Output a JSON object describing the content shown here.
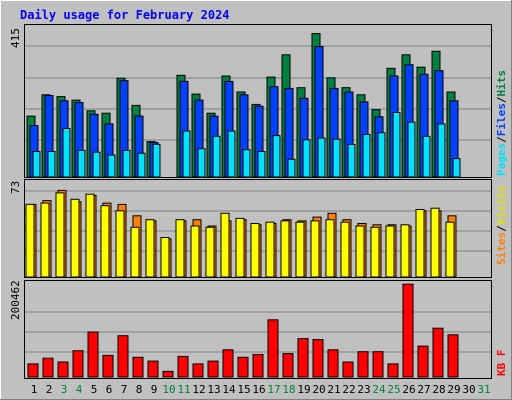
{
  "title": "Daily usage for February 2024",
  "colors": {
    "background": "#c0c0c0",
    "plot_bg": "#c0c0c0",
    "title": "#0000ff",
    "hits": "#008040",
    "files": "#0040ff",
    "pages": "#00e0ff",
    "visits": "#ffff00",
    "sites": "#ff8000",
    "kbytes": "#ff0000",
    "weekend_label": "#008040",
    "weekday_label": "#000000"
  },
  "labels": {
    "pages": "Pages",
    "files": "Files",
    "hits": "Hits",
    "sites": "Sites",
    "visits": "Visits",
    "kbytes": "KB F",
    "sep": "/"
  },
  "chart_data": [
    {
      "type": "bar",
      "panel": "hits-files-pages",
      "ymax_label": "415",
      "ymax": 415,
      "categories": [
        "1",
        "2",
        "3",
        "4",
        "5",
        "6",
        "7",
        "8",
        "9",
        "10",
        "11",
        "12",
        "13",
        "14",
        "15",
        "16",
        "17",
        "18",
        "19",
        "20",
        "21",
        "22",
        "23",
        "24",
        "25",
        "26",
        "27",
        "28",
        "29",
        "30",
        "31"
      ],
      "series": [
        {
          "name": "Hits",
          "values": [
            172,
            232,
            227,
            217,
            187,
            180,
            279,
            202,
            100,
            0,
            287,
            234,
            180,
            285,
            240,
            205,
            282,
            345,
            252,
            405,
            280,
            252,
            232,
            190,
            307,
            345,
            310,
            355,
            240,
            0,
            0
          ]
        },
        {
          "name": "Files",
          "values": [
            145,
            230,
            215,
            210,
            177,
            150,
            272,
            172,
            97,
            0,
            270,
            217,
            172,
            270,
            232,
            200,
            255,
            250,
            222,
            368,
            250,
            240,
            212,
            170,
            285,
            317,
            290,
            300,
            215,
            0,
            0
          ]
        },
        {
          "name": "Pages",
          "values": [
            72,
            72,
            137,
            75,
            70,
            62,
            75,
            67,
            92,
            0,
            130,
            80,
            115,
            130,
            77,
            72,
            117,
            50,
            105,
            110,
            107,
            92,
            120,
            125,
            182,
            155,
            115,
            150,
            52,
            0,
            0
          ]
        }
      ]
    },
    {
      "type": "bar",
      "panel": "visits-sites",
      "ymax_label": "73",
      "ymax": 73,
      "categories": [
        "1",
        "2",
        "3",
        "4",
        "5",
        "6",
        "7",
        "8",
        "9",
        "10",
        "11",
        "12",
        "13",
        "14",
        "15",
        "16",
        "17",
        "18",
        "19",
        "20",
        "21",
        "22",
        "23",
        "24",
        "25",
        "26",
        "27",
        "28",
        "29",
        "30",
        "31"
      ],
      "series": [
        {
          "name": "Visits",
          "values": [
            57,
            58,
            66,
            61,
            65,
            56,
            52,
            39,
            45,
            31,
            45,
            40,
            39,
            50,
            46,
            42,
            43,
            44,
            43,
            44,
            45,
            43,
            40,
            39,
            40,
            41,
            53,
            54,
            43,
            0,
            0
          ]
        },
        {
          "name": "Sites",
          "values": [
            57,
            60,
            68,
            59,
            64,
            58,
            57,
            48,
            44,
            30,
            44,
            45,
            40,
            44,
            45,
            41,
            42,
            45,
            44,
            47,
            50,
            45,
            42,
            41,
            41,
            40,
            52,
            52,
            48,
            0,
            0
          ]
        }
      ]
    },
    {
      "type": "bar",
      "panel": "kbytes",
      "ymax_label": "200462",
      "ymax": 200462,
      "categories": [
        "1",
        "2",
        "3",
        "4",
        "5",
        "6",
        "7",
        "8",
        "9",
        "10",
        "11",
        "12",
        "13",
        "14",
        "15",
        "16",
        "17",
        "18",
        "19",
        "20",
        "21",
        "22",
        "23",
        "24",
        "25",
        "26",
        "27",
        "28",
        "29",
        "30",
        "31"
      ],
      "series": [
        {
          "name": "KB F",
          "values": [
            28000,
            40000,
            32000,
            56000,
            96000,
            46000,
            88000,
            42000,
            34000,
            12000,
            44000,
            28000,
            34000,
            58000,
            42000,
            48000,
            122000,
            50000,
            82000,
            80000,
            58000,
            32000,
            54000,
            54000,
            28000,
            198000,
            66000,
            104000,
            90000,
            0,
            0
          ]
        }
      ]
    }
  ],
  "day_labels": [
    "1",
    "2",
    "3",
    "4",
    "5",
    "6",
    "7",
    "8",
    "9",
    "10",
    "11",
    "12",
    "13",
    "14",
    "15",
    "16",
    "17",
    "18",
    "19",
    "20",
    "21",
    "22",
    "23",
    "24",
    "25",
    "26",
    "27",
    "28",
    "29",
    "30",
    "31"
  ],
  "weekend_days": [
    3,
    4,
    10,
    11,
    17,
    18,
    24,
    25,
    31
  ]
}
